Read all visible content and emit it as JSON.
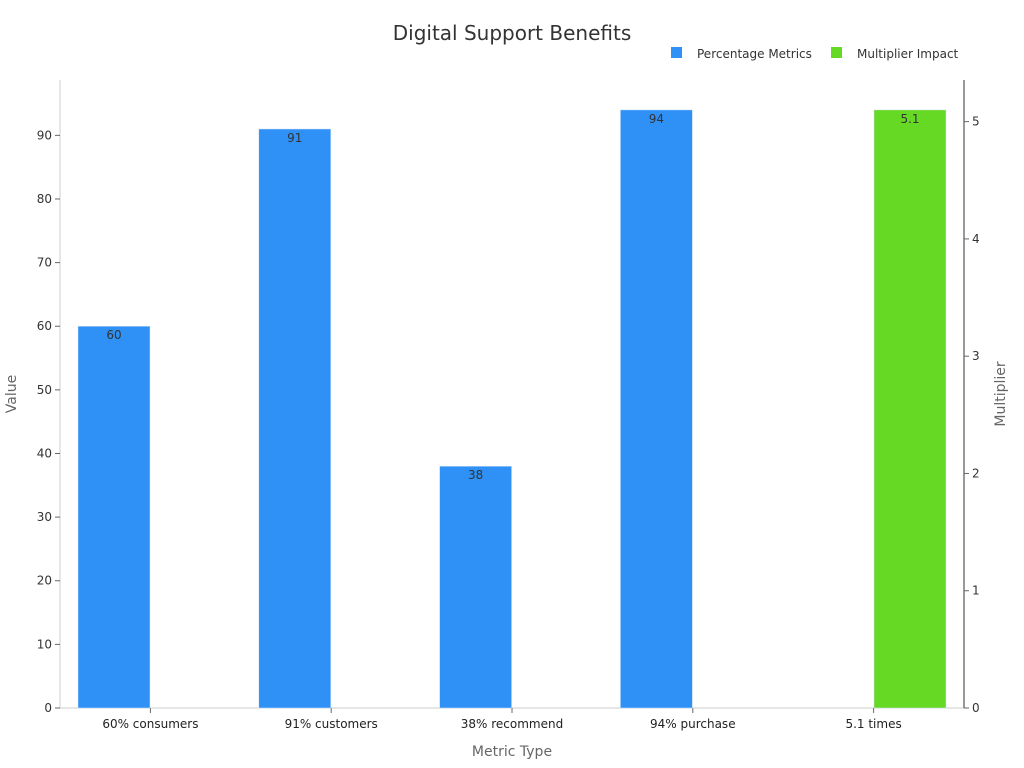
{
  "chart_data": {
    "type": "bar",
    "title": "Digital Support Benefits",
    "xlabel": "Metric Type",
    "ylabel": "Value",
    "y2label": "Multiplier",
    "categories": [
      "60% consumers",
      "91% customers",
      "38% recommend",
      "94% purchase",
      "5.1 times"
    ],
    "series": [
      {
        "name": "Percentage Metrics",
        "axis": "left",
        "color": "#2f91f5",
        "values": [
          60,
          91,
          38,
          94,
          null
        ],
        "labels": [
          "60",
          "91",
          "38",
          "94",
          ""
        ]
      },
      {
        "name": "Multiplier Impact",
        "axis": "right",
        "color": "#66d925",
        "values": [
          null,
          null,
          null,
          null,
          5.1
        ],
        "labels": [
          "",
          "",
          "",
          "",
          "5.1"
        ]
      }
    ],
    "ylim": [
      0,
      98.7
    ],
    "yticks": [
      0,
      10,
      20,
      30,
      40,
      50,
      60,
      70,
      80,
      90
    ],
    "y2lim": [
      0,
      5.355
    ],
    "y2ticks": [
      0,
      1,
      2,
      3,
      4,
      5
    ],
    "legend": "top-right",
    "grid": false
  }
}
